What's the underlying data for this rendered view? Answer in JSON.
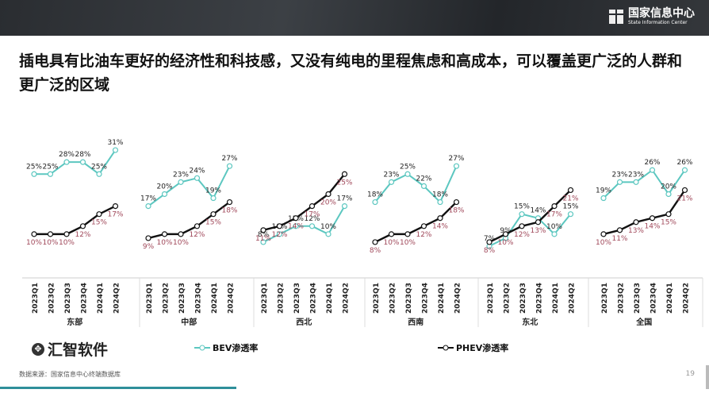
{
  "header": {
    "logo_cn": "国家信息中心",
    "logo_en": "State Information Center"
  },
  "title": "插电具有比油车更好的经济性和科技感，又没有纯电的里程焦虑和高成本，可以覆盖更广泛的人群和更广泛的区域",
  "watermark": "汇智软件",
  "footer": {
    "source": "数据来源：国家信息中心终端数据库",
    "page": "19"
  },
  "colors": {
    "bev": "#5cc7c0",
    "phev": "#111111",
    "phev_label": "#a0485a",
    "bar": "#2f8f9a"
  },
  "chart_data": {
    "type": "line",
    "categories": [
      "2023Q1",
      "2023Q2",
      "2023Q3",
      "2023Q4",
      "2024Q1",
      "2024Q2"
    ],
    "legend": {
      "position": "bottom",
      "entries": [
        "BEV渗透率",
        "PHEV渗透率"
      ]
    },
    "groups": [
      {
        "name": "东部",
        "series": [
          {
            "name": "BEV渗透率",
            "values": [
              25,
              25,
              28,
              28,
              25,
              31
            ]
          },
          {
            "name": "PHEV渗透率",
            "values": [
              10,
              10,
              10,
              12,
              15,
              17
            ]
          }
        ]
      },
      {
        "name": "中部",
        "series": [
          {
            "name": "BEV渗透率",
            "values": [
              17,
              20,
              23,
              24,
              19,
              27
            ]
          },
          {
            "name": "PHEV渗透率",
            "values": [
              9,
              10,
              10,
              12,
              15,
              18
            ]
          }
        ]
      },
      {
        "name": "西北",
        "series": [
          {
            "name": "BEV渗透率",
            "values": [
              8,
              10,
              12,
              12,
              10,
              17
            ]
          },
          {
            "name": "PHEV渗透率",
            "values": [
              11,
              12,
              14,
              17,
              20,
              25
            ]
          }
        ]
      },
      {
        "name": "西南",
        "series": [
          {
            "name": "BEV渗透率",
            "values": [
              18,
              23,
              25,
              22,
              18,
              27
            ]
          },
          {
            "name": "PHEV渗透率",
            "values": [
              8,
              10,
              10,
              12,
              14,
              18
            ]
          }
        ]
      },
      {
        "name": "东北",
        "series": [
          {
            "name": "BEV渗透率",
            "values": [
              7,
              9,
              15,
              14,
              10,
              15
            ]
          },
          {
            "name": "PHEV渗透率",
            "values": [
              8,
              10,
              12,
              13,
              17,
              21
            ]
          }
        ]
      },
      {
        "name": "全国",
        "series": [
          {
            "name": "BEV渗透率",
            "values": [
              19,
              23,
              23,
              26,
              20,
              26
            ]
          },
          {
            "name": "PHEV渗透率",
            "values": [
              10,
              11,
              13,
              14,
              15,
              21
            ]
          }
        ]
      }
    ],
    "unit": "%"
  }
}
